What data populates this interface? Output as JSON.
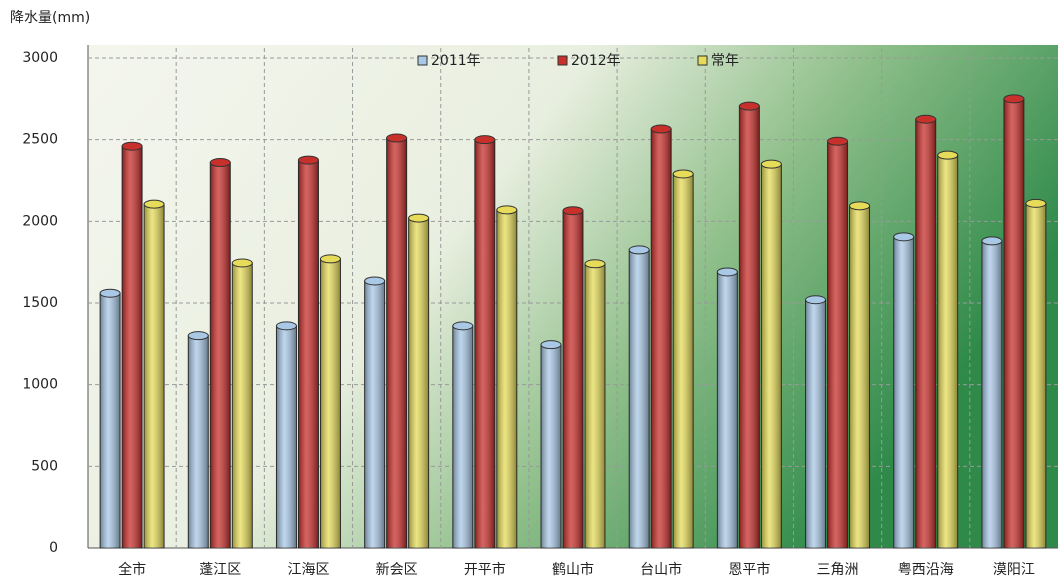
{
  "chart_data": {
    "type": "bar",
    "y_label": "降水量(mm)",
    "categories": [
      "全市",
      "蓬江区",
      "江海区",
      "新会区",
      "开平市",
      "鹤山市",
      "台山市",
      "恩平市",
      "三角洲",
      "粤西沿海",
      "漠阳江"
    ],
    "series": [
      {
        "name": "2011年",
        "color": "#a9c8e6",
        "values": [
          1560,
          1300,
          1360,
          1635,
          1360,
          1245,
          1825,
          1690,
          1520,
          1905,
          1880
        ]
      },
      {
        "name": "2012年",
        "color": "#c8302c",
        "values": [
          2460,
          2360,
          2375,
          2510,
          2500,
          2065,
          2565,
          2705,
          2490,
          2625,
          2750
        ]
      },
      {
        "name": "常年",
        "color": "#e6dc5a",
        "values": [
          2105,
          1745,
          1770,
          2020,
          2070,
          1740,
          2290,
          2350,
          2095,
          2405,
          2110
        ]
      }
    ],
    "ylim": [
      0,
      3000
    ],
    "yticks": [
      0,
      500,
      1000,
      1500,
      2000,
      2500,
      3000
    ],
    "grid": true
  }
}
